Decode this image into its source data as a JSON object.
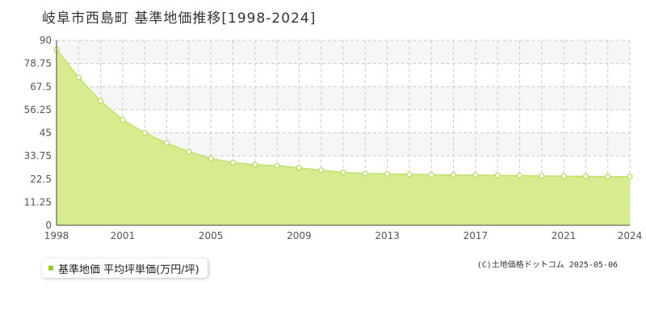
{
  "colors": {
    "fill": "#d7ec8e",
    "line": "#c0e16c",
    "marker_stroke": "#b7d95c",
    "marker_fill": "#ffffff",
    "grid": "#cccccc",
    "band": "#f6f6f6",
    "legend_swatch": "#9ccc2e"
  },
  "chart_data": {
    "type": "area",
    "title": "岐阜市西島町 基準地価推移[1998-2024]",
    "xlabel": "",
    "ylabel": "",
    "x": [
      1998,
      1999,
      2000,
      2001,
      2002,
      2003,
      2004,
      2005,
      2006,
      2007,
      2008,
      2009,
      2010,
      2011,
      2012,
      2013,
      2014,
      2015,
      2016,
      2017,
      2018,
      2019,
      2020,
      2021,
      2022,
      2023,
      2024
    ],
    "series": [
      {
        "name": "基準地価 平均坪単価(万円/坪)",
        "values": [
          85.5,
          72.0,
          60.5,
          51.3,
          45.0,
          40.0,
          35.8,
          32.5,
          30.5,
          29.5,
          29.0,
          28.0,
          26.8,
          25.8,
          25.2,
          25.0,
          24.8,
          24.6,
          24.5,
          24.4,
          24.3,
          24.2,
          24.0,
          23.9,
          23.8,
          23.7,
          23.7
        ]
      }
    ],
    "xlim": [
      1998,
      2024
    ],
    "ylim": [
      0,
      90
    ],
    "y_ticks": [
      "0",
      "11.25",
      "22.5",
      "33.75",
      "45",
      "56.25",
      "67.5",
      "78.75",
      "90"
    ],
    "y_tick_values": [
      0,
      11.25,
      22.5,
      33.75,
      45,
      56.25,
      67.5,
      78.75,
      90
    ],
    "x_ticks": [
      "1998",
      "2001",
      "2005",
      "2009",
      "2013",
      "2017",
      "2021",
      "2024"
    ],
    "x_tick_values": [
      1998,
      2001,
      2005,
      2009,
      2013,
      2017,
      2021,
      2024
    ],
    "grid": true,
    "legend_position": "bottom-left"
  },
  "legend": {
    "label": "基準地価 平均坪単価(万円/坪)"
  },
  "footer": {
    "copyright": "(C)土地価格ドットコム 2025-05-06"
  }
}
